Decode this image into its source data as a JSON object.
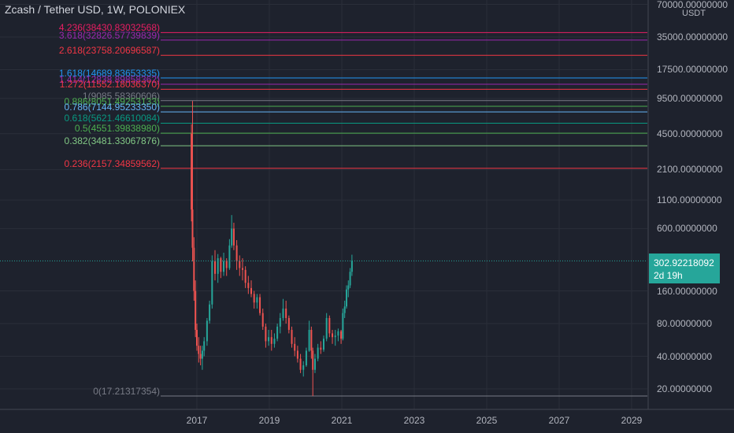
{
  "chart_data": {
    "type": "candlestick",
    "title": "Zcash / Tether USD, 1W, POLONIEX",
    "y_scale": "log",
    "y_unit": "USDT",
    "y_tick_labels": [
      {
        "value": 70000,
        "label": "70000.00000000"
      },
      {
        "value": 35000,
        "label": "35000.00000000"
      },
      {
        "value": 17500,
        "label": "17500.00000000"
      },
      {
        "value": 9500,
        "label": "9500.00000000"
      },
      {
        "value": 4500,
        "label": "4500.00000000"
      },
      {
        "value": 2100,
        "label": "2100.00000000"
      },
      {
        "value": 1100,
        "label": "1100.00000000"
      },
      {
        "value": 600,
        "label": "600.00000000"
      },
      {
        "value": 160,
        "label": "160.00000000"
      },
      {
        "value": 80,
        "label": "80.00000000"
      },
      {
        "value": 40,
        "label": "40.00000000"
      },
      {
        "value": 20,
        "label": "20.00000000"
      }
    ],
    "x_tick_labels": [
      "2017",
      "2019",
      "2021",
      "2023",
      "2025",
      "2027",
      "2029"
    ],
    "x_range": [
      2015.6,
      2029.8
    ],
    "current_price": {
      "value": 302.92218092,
      "label": "302.92218092",
      "countdown": "2d 19h"
    },
    "fib_levels": [
      {
        "ratio": "4.236",
        "value": 38430.83032568,
        "label": "4.236(38430.83032568)",
        "color": "#e91e63"
      },
      {
        "ratio": "3.618",
        "value": 32826.57739839,
        "label": "3.618(32826.57739839)",
        "color": "#9c27b0"
      },
      {
        "ratio": "2.618",
        "value": 23758.20696587,
        "label": "2.618(23758.20696587)",
        "color": "#f23645"
      },
      {
        "ratio": "1.618",
        "value": 14689.83653335,
        "label": "1.618(14689.83653335)",
        "color": "#2196f3"
      },
      {
        "ratio": "1.414",
        "value": 12838.89858362,
        "label": "1.414(12838.89858362)",
        "color": "#9c27b0"
      },
      {
        "ratio": "1.272",
        "value": 11552.1803637,
        "label": "1.272(11552.18036370)",
        "color": "#f23645"
      },
      {
        "ratio": "1",
        "value": 9085.58360606,
        "label": "1(9085.58360606)",
        "color": "#787b86"
      },
      {
        "ratio": "0.886",
        "value": 8051.49253133,
        "label": "0.886(8051.49253133)",
        "color": "#4caf50"
      },
      {
        "ratio": "0.786",
        "value": 7144.9523335,
        "label": "0.786(7144.95233350)",
        "color": "#64b5f6"
      },
      {
        "ratio": "0.618",
        "value": 5621.46610084,
        "label": "0.618(5621.46610084)",
        "color": "#089981"
      },
      {
        "ratio": "0.5",
        "value": 4551.3983898,
        "label": "0.5(4551.39838980)",
        "color": "#4caf50"
      },
      {
        "ratio": "0.382",
        "value": 3481.33067876,
        "label": "0.382(3481.33067876)",
        "color": "#81c784"
      },
      {
        "ratio": "0.236",
        "value": 2157.34859562,
        "label": "0.236(2157.34859562)",
        "color": "#f23645"
      },
      {
        "ratio": "0",
        "value": 17.21317354,
        "label": "0(17.21317354)",
        "color": "#787b86"
      }
    ],
    "candles": [
      {
        "t": 2016.85,
        "o": 4500,
        "h": 5500,
        "l": 700,
        "c": 900
      },
      {
        "t": 2016.88,
        "o": 900,
        "h": 9000,
        "l": 300,
        "c": 400
      },
      {
        "t": 2016.92,
        "o": 400,
        "h": 500,
        "l": 130,
        "c": 160
      },
      {
        "t": 2016.96,
        "o": 160,
        "h": 200,
        "l": 60,
        "c": 70
      },
      {
        "t": 2017.0,
        "o": 70,
        "h": 80,
        "l": 45,
        "c": 50
      },
      {
        "t": 2017.05,
        "o": 50,
        "h": 60,
        "l": 35,
        "c": 42
      },
      {
        "t": 2017.1,
        "o": 42,
        "h": 50,
        "l": 33,
        "c": 38
      },
      {
        "t": 2017.15,
        "o": 38,
        "h": 50,
        "l": 30,
        "c": 45
      },
      {
        "t": 2017.2,
        "o": 45,
        "h": 60,
        "l": 40,
        "c": 55
      },
      {
        "t": 2017.28,
        "o": 55,
        "h": 90,
        "l": 50,
        "c": 85
      },
      {
        "t": 2017.35,
        "o": 85,
        "h": 130,
        "l": 80,
        "c": 120
      },
      {
        "t": 2017.42,
        "o": 120,
        "h": 340,
        "l": 110,
        "c": 300
      },
      {
        "t": 2017.5,
        "o": 300,
        "h": 380,
        "l": 200,
        "c": 230
      },
      {
        "t": 2017.58,
        "o": 230,
        "h": 350,
        "l": 190,
        "c": 320
      },
      {
        "t": 2017.66,
        "o": 320,
        "h": 330,
        "l": 210,
        "c": 240
      },
      {
        "t": 2017.74,
        "o": 240,
        "h": 360,
        "l": 220,
        "c": 300
      },
      {
        "t": 2017.82,
        "o": 300,
        "h": 320,
        "l": 220,
        "c": 260
      },
      {
        "t": 2017.9,
        "o": 260,
        "h": 480,
        "l": 250,
        "c": 420
      },
      {
        "t": 2017.96,
        "o": 420,
        "h": 800,
        "l": 400,
        "c": 600
      },
      {
        "t": 2018.02,
        "o": 600,
        "h": 680,
        "l": 380,
        "c": 420
      },
      {
        "t": 2018.1,
        "o": 420,
        "h": 470,
        "l": 250,
        "c": 300
      },
      {
        "t": 2018.18,
        "o": 300,
        "h": 340,
        "l": 220,
        "c": 260
      },
      {
        "t": 2018.26,
        "o": 260,
        "h": 320,
        "l": 200,
        "c": 250
      },
      {
        "t": 2018.34,
        "o": 250,
        "h": 270,
        "l": 170,
        "c": 190
      },
      {
        "t": 2018.42,
        "o": 190,
        "h": 220,
        "l": 150,
        "c": 170
      },
      {
        "t": 2018.5,
        "o": 170,
        "h": 200,
        "l": 140,
        "c": 150
      },
      {
        "t": 2018.58,
        "o": 150,
        "h": 160,
        "l": 110,
        "c": 125
      },
      {
        "t": 2018.66,
        "o": 125,
        "h": 150,
        "l": 110,
        "c": 140
      },
      {
        "t": 2018.74,
        "o": 140,
        "h": 150,
        "l": 95,
        "c": 100
      },
      {
        "t": 2018.82,
        "o": 100,
        "h": 110,
        "l": 70,
        "c": 75
      },
      {
        "t": 2018.9,
        "o": 75,
        "h": 80,
        "l": 48,
        "c": 55
      },
      {
        "t": 2018.98,
        "o": 55,
        "h": 70,
        "l": 50,
        "c": 60
      },
      {
        "t": 2019.06,
        "o": 60,
        "h": 70,
        "l": 45,
        "c": 52
      },
      {
        "t": 2019.14,
        "o": 52,
        "h": 65,
        "l": 48,
        "c": 58
      },
      {
        "t": 2019.22,
        "o": 58,
        "h": 80,
        "l": 55,
        "c": 75
      },
      {
        "t": 2019.3,
        "o": 75,
        "h": 100,
        "l": 65,
        "c": 90
      },
      {
        "t": 2019.38,
        "o": 90,
        "h": 135,
        "l": 85,
        "c": 110
      },
      {
        "t": 2019.46,
        "o": 110,
        "h": 130,
        "l": 80,
        "c": 90
      },
      {
        "t": 2019.54,
        "o": 90,
        "h": 95,
        "l": 65,
        "c": 70
      },
      {
        "t": 2019.62,
        "o": 70,
        "h": 75,
        "l": 48,
        "c": 52
      },
      {
        "t": 2019.7,
        "o": 52,
        "h": 60,
        "l": 40,
        "c": 45
      },
      {
        "t": 2019.78,
        "o": 45,
        "h": 50,
        "l": 35,
        "c": 38
      },
      {
        "t": 2019.86,
        "o": 38,
        "h": 42,
        "l": 28,
        "c": 30
      },
      {
        "t": 2019.94,
        "o": 30,
        "h": 36,
        "l": 26,
        "c": 33
      },
      {
        "t": 2020.02,
        "o": 33,
        "h": 48,
        "l": 32,
        "c": 45
      },
      {
        "t": 2020.1,
        "o": 45,
        "h": 85,
        "l": 44,
        "c": 70
      },
      {
        "t": 2020.16,
        "o": 70,
        "h": 75,
        "l": 38,
        "c": 45
      },
      {
        "t": 2020.2,
        "o": 45,
        "h": 48,
        "l": 17.2,
        "c": 30
      },
      {
        "t": 2020.26,
        "o": 30,
        "h": 42,
        "l": 28,
        "c": 38
      },
      {
        "t": 2020.34,
        "o": 38,
        "h": 52,
        "l": 36,
        "c": 48
      },
      {
        "t": 2020.42,
        "o": 48,
        "h": 55,
        "l": 42,
        "c": 46
      },
      {
        "t": 2020.5,
        "o": 46,
        "h": 62,
        "l": 44,
        "c": 58
      },
      {
        "t": 2020.58,
        "o": 58,
        "h": 100,
        "l": 55,
        "c": 90
      },
      {
        "t": 2020.66,
        "o": 90,
        "h": 95,
        "l": 60,
        "c": 65
      },
      {
        "t": 2020.74,
        "o": 65,
        "h": 70,
        "l": 52,
        "c": 60
      },
      {
        "t": 2020.82,
        "o": 60,
        "h": 70,
        "l": 50,
        "c": 62
      },
      {
        "t": 2020.9,
        "o": 62,
        "h": 72,
        "l": 55,
        "c": 68
      },
      {
        "t": 2020.98,
        "o": 68,
        "h": 70,
        "l": 52,
        "c": 58
      },
      {
        "t": 2021.03,
        "o": 58,
        "h": 110,
        "l": 56,
        "c": 100
      },
      {
        "t": 2021.08,
        "o": 100,
        "h": 130,
        "l": 90,
        "c": 115
      },
      {
        "t": 2021.13,
        "o": 115,
        "h": 180,
        "l": 110,
        "c": 165
      },
      {
        "t": 2021.18,
        "o": 165,
        "h": 200,
        "l": 140,
        "c": 180
      },
      {
        "t": 2021.23,
        "o": 180,
        "h": 260,
        "l": 170,
        "c": 240
      },
      {
        "t": 2021.28,
        "o": 240,
        "h": 345,
        "l": 220,
        "c": 302.92
      }
    ]
  },
  "colors": {
    "background": "#1e222d",
    "grid": "#2a2e39",
    "up": "#26a69a",
    "down": "#ef5350",
    "text": "#b2b5be"
  }
}
